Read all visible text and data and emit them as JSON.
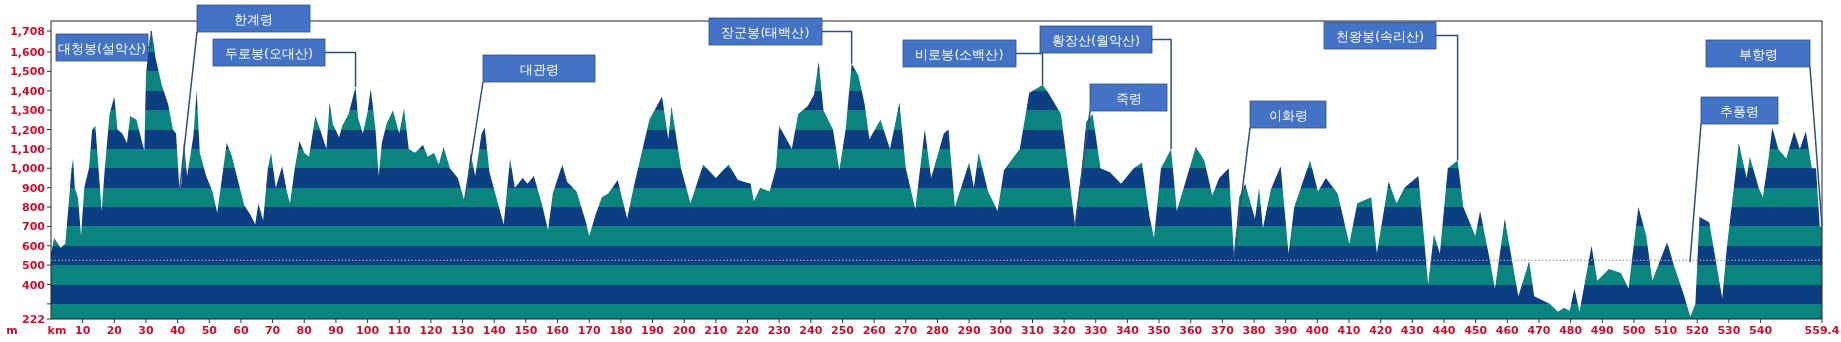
{
  "chart_data": {
    "type": "area",
    "xlabel": "km",
    "ylabel": "m",
    "xlim": [
      0,
      559.4
    ],
    "ylim": [
      222,
      1760
    ],
    "xticks": [
      10,
      20,
      30,
      40,
      50,
      60,
      70,
      80,
      90,
      100,
      110,
      120,
      130,
      140,
      150,
      160,
      170,
      180,
      190,
      200,
      210,
      220,
      230,
      240,
      250,
      260,
      270,
      280,
      290,
      300,
      310,
      320,
      330,
      340,
      350,
      360,
      370,
      380,
      390,
      400,
      410,
      420,
      430,
      440,
      450,
      460,
      470,
      480,
      490,
      500,
      510,
      520,
      530,
      540,
      559.4
    ],
    "yticks": [
      222,
      {
        "value": 300,
        "label": null
      },
      400,
      500,
      600,
      700,
      800,
      900,
      {
        "value": 1000,
        "label": "1,000"
      },
      {
        "value": 1100,
        "label": "1,100"
      },
      {
        "value": 1200,
        "label": "1,200"
      },
      {
        "value": 1300,
        "label": "1,300"
      },
      {
        "value": 1400,
        "label": "1,400"
      },
      {
        "value": 1500,
        "label": "1,500"
      },
      {
        "value": 1600,
        "label": "1,600"
      },
      {
        "value": 1708,
        "label": "1,708"
      }
    ],
    "grid": false,
    "x": [
      0,
      1,
      3,
      4.5,
      5.5,
      6.5,
      7,
      7.5,
      8.5,
      9.5,
      10.5,
      12,
      13,
      14,
      15,
      16,
      17,
      18.5,
      20,
      21,
      22.5,
      24,
      25,
      27,
      29,
      29.5,
      30,
      31,
      31.7,
      32.5,
      33,
      35,
      37,
      38.5,
      39.5,
      40.6,
      41.2,
      42,
      43,
      45,
      46,
      47,
      49,
      51,
      52.5,
      54,
      55.5,
      57,
      59,
      61,
      63,
      64.5,
      65.5,
      67,
      68.5,
      69.5,
      71,
      73,
      74.5,
      75.5,
      77,
      78.5,
      80,
      81.5,
      83.5,
      85,
      87,
      88,
      89,
      91,
      92,
      94,
      96.2,
      97,
      98.5,
      100,
      101,
      102.5,
      103.5,
      104.5,
      106,
      108,
      110,
      111.5,
      113,
      115,
      117.5,
      119,
      121,
      122.5,
      124,
      126,
      128.5,
      130.6,
      131.5,
      132.5,
      134,
      136,
      137,
      138.5,
      141,
      143,
      145,
      146.5,
      149,
      150.5,
      152.5,
      155,
      157,
      158.5,
      161.5,
      163,
      166,
      169,
      170,
      172,
      174,
      176,
      179,
      182,
      184,
      189,
      193,
      195,
      196,
      199,
      202,
      206,
      210,
      214,
      217,
      221,
      222,
      224,
      227,
      229,
      230,
      234,
      236,
      239,
      241,
      242.5,
      244,
      247,
      249,
      251,
      252.9,
      255,
      257,
      258.5,
      262,
      265,
      268,
      270,
      273,
      276,
      278,
      282,
      283.5,
      285.5,
      290,
      291.5,
      293,
      296,
      299,
      301,
      306,
      309,
      313.2,
      315,
      319,
      322,
      323.5,
      325.6,
      327,
      329,
      331.5,
      334.5,
      338,
      342,
      344.6,
      347,
      348.4,
      350.6,
      353.8,
      355.6,
      358.7,
      361.6,
      364.3,
      366.8,
      369,
      372,
      373.7,
      375.3,
      377.2,
      380.3,
      381.6,
      382.8,
      385.3,
      388.4,
      390.9,
      392.7,
      397.7,
      400.2,
      402.7,
      406.4,
      410.1,
      412.6,
      417,
      418.8,
      422.5,
      425,
      427.5,
      431.9,
      433.7,
      435,
      436.8,
      438.7,
      441.2,
      444.3,
      446.1,
      449.9,
      451.4,
      454.2,
      456.1,
      459.2,
      461.1,
      463.5,
      466.9,
      468.5,
      473.5,
      476,
      477.9,
      479.7,
      481.2,
      482.8,
      486.6,
      488.4,
      492.1,
      495.9,
      498.3,
      501.4,
      503.9,
      505.8,
      510.5,
      512.6,
      515.7,
      517.8,
      519.4,
      520.7,
      523.8,
      526.3,
      527.9,
      529.4,
      531.9,
      533.1,
      535.6,
      536.6,
      539.4,
      540.7,
      542.5,
      543.7,
      545.6,
      548.1,
      550.6,
      552.4,
      554.3,
      556.2,
      557.5,
      558.7,
      559.4
    ],
    "series": [
      {
        "color": "#0b8480",
        "values": [
          560,
          640,
          590,
          610,
          800,
          1000,
          1050,
          900,
          850,
          650,
          900,
          1000,
          1200,
          1220,
          1000,
          780,
          1000,
          1280,
          1370,
          1200,
          1180,
          1130,
          1270,
          1250,
          1120,
          1090,
          1480,
          1650,
          1708,
          1640,
          1570,
          1430,
          1330,
          1200,
          1180,
          880,
          920,
          1140,
          960,
          1170,
          1400,
          1080,
          960,
          880,
          770,
          950,
          1130,
          1070,
          940,
          810,
          760,
          710,
          820,
          730,
          1000,
          1080,
          900,
          1010,
          880,
          820,
          1000,
          1140,
          1080,
          1060,
          1270,
          1200,
          1100,
          1340,
          1230,
          1160,
          1220,
          1280,
          1420,
          1260,
          1180,
          1290,
          1410,
          1200,
          960,
          1130,
          1230,
          1300,
          1180,
          1310,
          1100,
          1080,
          1120,
          1060,
          1080,
          1020,
          1110,
          1000,
          950,
          830,
          920,
          1080,
          960,
          1180,
          1210,
          980,
          830,
          710,
          1050,
          900,
          950,
          920,
          960,
          820,
          680,
          870,
          1020,
          930,
          880,
          720,
          650,
          760,
          850,
          870,
          940,
          740,
          900,
          1250,
          1370,
          1150,
          1320,
          1000,
          820,
          1020,
          950,
          1020,
          940,
          920,
          830,
          900,
          880,
          1000,
          1220,
          1100,
          1280,
          1320,
          1380,
          1550,
          1300,
          1200,
          990,
          1200,
          1540,
          1480,
          1330,
          1150,
          1250,
          1100,
          1340,
          1000,
          790,
          1200,
          950,
          1180,
          1200,
          800,
          1030,
          900,
          1080,
          880,
          780,
          990,
          1100,
          1390,
          1430,
          1390,
          1280,
          900,
          700,
          1000,
          1240,
          1280,
          1000,
          980,
          920,
          1000,
          1030,
          750,
          640,
          1000,
          1100,
          780,
          950,
          1110,
          1040,
          860,
          950,
          1000,
          540,
          850,
          920,
          740,
          900,
          690,
          890,
          1010,
          560,
          800,
          1040,
          880,
          950,
          870,
          610,
          820,
          850,
          560,
          930,
          820,
          900,
          960,
          640,
          400,
          660,
          560,
          1000,
          1040,
          800,
          650,
          780,
          550,
          380,
          740,
          560,
          340,
          520,
          340,
          300,
          260,
          280,
          265,
          380,
          260,
          600,
          420,
          480,
          460,
          380,
          800,
          650,
          420,
          620,
          500,
          350,
          235,
          300,
          750,
          720,
          480,
          330,
          600,
          950,
          1130,
          950,
          1060,
          900,
          850,
          1050,
          1210,
          1100,
          1050,
          1190,
          1100,
          1190,
          1000,
          1000,
          700,
          700
        ]
      }
    ],
    "ref_lines": [
      {
        "axis": "y",
        "value": 525,
        "color": "#a0a0a0",
        "line_style": "dotted"
      }
    ],
    "annotations": [
      {
        "text": "대청봉(설악산)",
        "x": 31.7,
        "y": 1708
      },
      "한계령",
      {
        "text": "두로봉(오대산)",
        "x": 96.2,
        "y": 1420
      },
      "대관령",
      {
        "text": "장군봉(태백산)",
        "x": 252.9,
        "y": 1540
      },
      {
        "text": "비로봉(소백산)",
        "x": 313.2,
        "y": 1430
      },
      "죽령",
      {
        "text": "황장산(월악산)",
        "x": 353.8,
        "y": 1100
      },
      "이화령",
      {
        "text": "천왕봉(속리산)",
        "x": 444.3,
        "y": 1040
      },
      "추풍령",
      "부항령"
    ]
  }
}
